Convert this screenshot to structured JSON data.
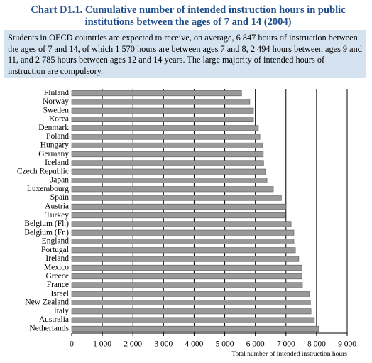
{
  "chart_data": {
    "type": "bar",
    "orientation": "horizontal",
    "title_label": "Chart D1.1.",
    "title": "Cumulative number of intended instruction hours in public institutions between the ages of 7 and 14 (2004)",
    "note": "Students in OECD countries are expected to receive, on average, 6 847 hours of instruction between the ages of 7 and 14, of which 1 570 hours are between ages 7 and 8, 2 494 hours between ages 9 and 11, and 2 785 hours between ages 12 and 14 years. The large majority of intended hours of instruction are compulsory.",
    "x_label": "Total number of intended instruction hours",
    "categories": [
      "Finland",
      "Norway",
      "Sweden",
      "Korea",
      "Denmark",
      "Poland",
      "Hungary",
      "Germany",
      "Iceland",
      "Czech Republic",
      "Japan",
      "Luxembourg",
      "Spain",
      "Austria",
      "Turkey",
      "Belgium (Fl.)",
      "Belgium (Fr.)",
      "England",
      "Portugal",
      "Ireland",
      "Mexico",
      "Greece",
      "France",
      "Israel",
      "New Zealand",
      "Italy",
      "Australia",
      "Netherlands"
    ],
    "values": [
      5550,
      5820,
      5940,
      5940,
      6100,
      6150,
      6240,
      6260,
      6270,
      6330,
      6380,
      6590,
      6850,
      7000,
      6990,
      7170,
      7260,
      7260,
      7310,
      7420,
      7520,
      7520,
      7540,
      7770,
      7800,
      7820,
      7930,
      8070
    ],
    "color": "#999999",
    "xlim": [
      0,
      9000
    ],
    "xticks": [
      0,
      {
        "value": 1000,
        "label": "1 000"
      },
      {
        "value": 2000,
        "label": "2 000"
      },
      {
        "value": 3000,
        "label": "3 000"
      },
      {
        "value": 4000,
        "label": "4 000"
      },
      {
        "value": 5000,
        "label": "5 000"
      },
      {
        "value": 6000,
        "label": "6 000"
      },
      {
        "value": 7000,
        "label": "7 000"
      },
      {
        "value": 8000,
        "label": "8 000"
      },
      {
        "value": 9000,
        "label": "9 000"
      }
    ],
    "grid": true
  }
}
